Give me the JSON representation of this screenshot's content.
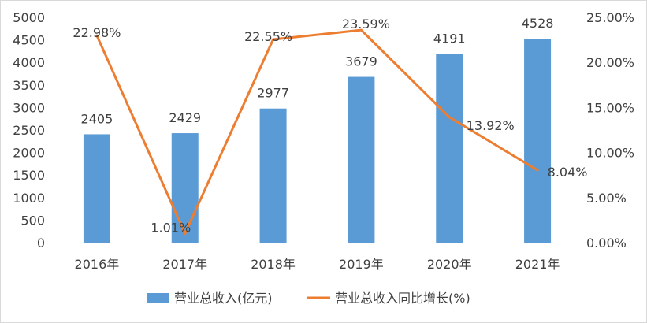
{
  "chart_data": {
    "type": "bar",
    "categories": [
      "2016年",
      "2017年",
      "2018年",
      "2019年",
      "2020年",
      "2021年"
    ],
    "series": [
      {
        "name": "营业总收入(亿元)",
        "type": "bar",
        "axis": "left",
        "color": "#5b9bd5",
        "values": [
          2405,
          2429,
          2977,
          3679,
          4191,
          4528
        ],
        "labels": [
          "2405",
          "2429",
          "2977",
          "3679",
          "4191",
          "4528"
        ]
      },
      {
        "name": "营业总收入同比增长(%)",
        "type": "line",
        "axis": "right",
        "color": "#ed7d31",
        "values": [
          22.98,
          1.01,
          22.55,
          23.59,
          13.92,
          8.04
        ],
        "labels": [
          "22.98%",
          "1.01%",
          "22.55%",
          "23.59%",
          "13.92%",
          "8.04%"
        ]
      }
    ],
    "y_left": {
      "ylim": [
        0,
        5000
      ],
      "ticks": [
        "0",
        "500",
        "1000",
        "1500",
        "2000",
        "2500",
        "3000",
        "3500",
        "4000",
        "4500",
        "5000"
      ]
    },
    "y_right": {
      "ylim": [
        0,
        25
      ],
      "ticks": [
        "0.00%",
        "5.00%",
        "10.00%",
        "15.00%",
        "20.00%",
        "25.00%"
      ]
    },
    "grid": false,
    "legend_position": "bottom",
    "title": "",
    "xlabel": "",
    "ylabel": ""
  }
}
